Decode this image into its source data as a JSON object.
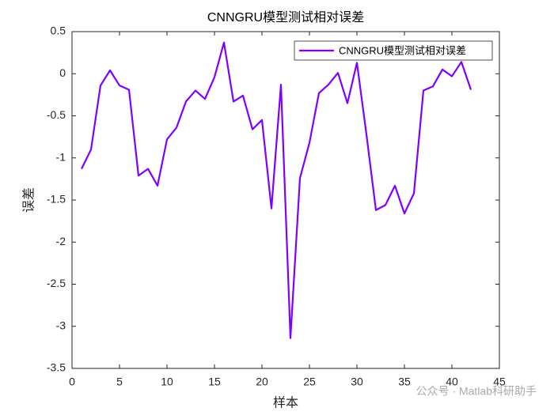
{
  "chart_data": {
    "type": "line",
    "title": "CNNGRU模型测试相对误差",
    "x_label": "样本",
    "y_label": "误差",
    "x": [
      1,
      2,
      3,
      4,
      5,
      6,
      7,
      8,
      9,
      10,
      11,
      12,
      13,
      14,
      15,
      16,
      17,
      18,
      19,
      20,
      21,
      22,
      23,
      24,
      25,
      26,
      27,
      28,
      29,
      30,
      31,
      32,
      33,
      34,
      35,
      36,
      37,
      38,
      39,
      40,
      41,
      42
    ],
    "series": [
      {
        "name": "CNNGRU模型测试相对误差",
        "color": "#8000ff",
        "values": [
          -1.13,
          -0.9,
          -0.14,
          0.04,
          -0.14,
          -0.19,
          -1.21,
          -1.13,
          -1.33,
          -0.78,
          -0.64,
          -0.33,
          -0.2,
          -0.3,
          -0.04,
          0.37,
          -0.33,
          -0.26,
          -0.66,
          -0.55,
          -1.6,
          -0.13,
          -3.14,
          -1.24,
          -0.82,
          -0.23,
          -0.13,
          0.01,
          -0.35,
          0.13,
          -0.72,
          -1.62,
          -1.56,
          -1.33,
          -1.66,
          -1.42,
          -0.2,
          -0.15,
          0.05,
          -0.03,
          0.14,
          -0.19
        ]
      }
    ],
    "xlim": [
      0,
      45
    ],
    "ylim": [
      -3.5,
      0.5
    ],
    "xticks": [
      0,
      5,
      10,
      15,
      20,
      25,
      30,
      35,
      40,
      45
    ],
    "yticks": [
      0.5,
      0,
      -0.5,
      -1,
      -1.5,
      -2,
      -2.5,
      -3,
      -3.5
    ],
    "legend": "upper right",
    "watermark": "公众号 · Matlab科研助手"
  }
}
